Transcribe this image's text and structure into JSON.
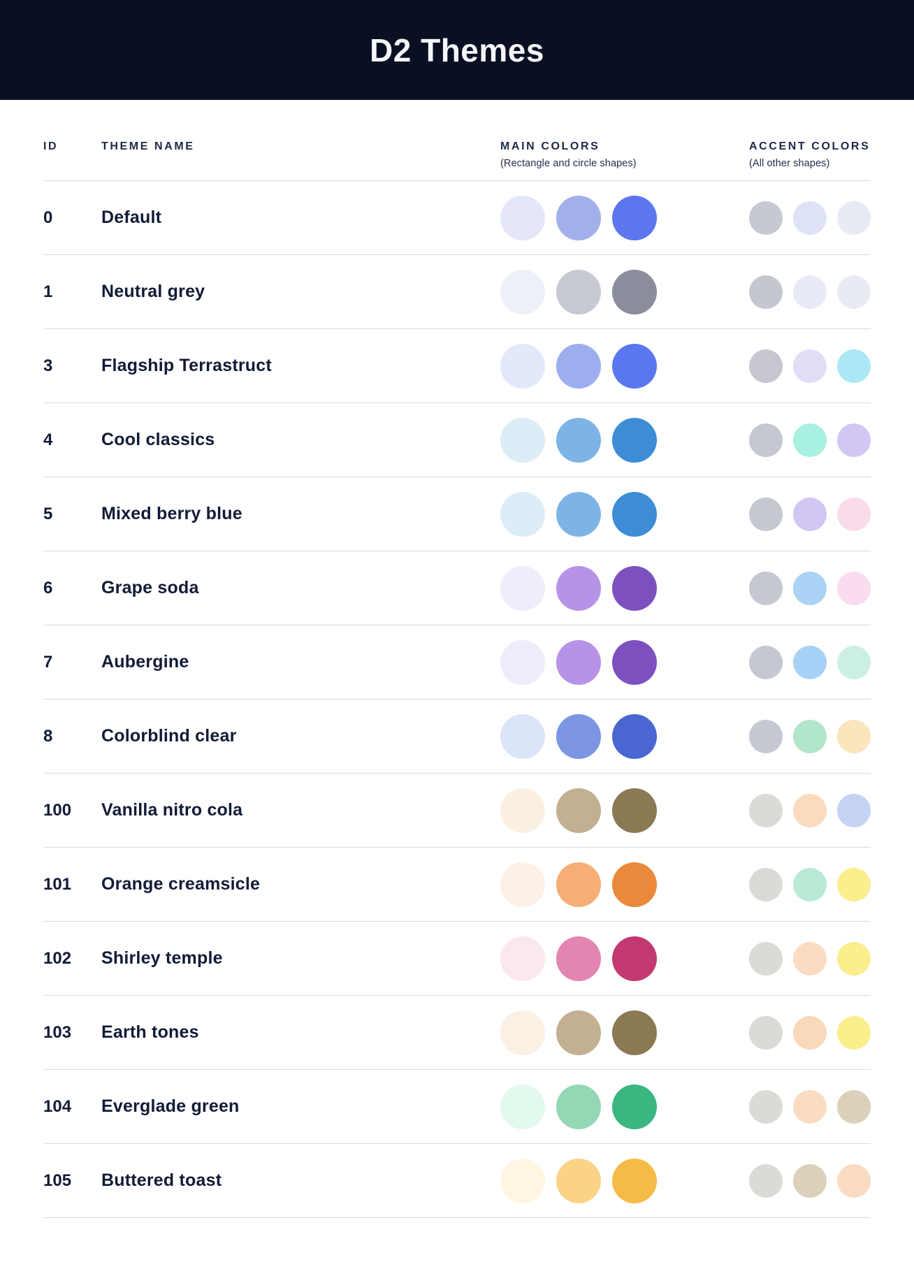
{
  "title": "D2 Themes",
  "colors": {
    "banner_bg": "#0A1023",
    "banner_text": "#F4F6F9",
    "row_text": "#121B36",
    "divider": "#D8DBE7"
  },
  "table": {
    "headers": {
      "id": "ID",
      "name": "THEME NAME",
      "main": "MAIN COLORS",
      "main_sub": "(Rectangle and circle shapes)",
      "accent": "ACCENT COLORS",
      "accent_sub": "(All other shapes)"
    },
    "rows": [
      {
        "id": "0",
        "name": "Default",
        "main": [
          "#E4E7F9",
          "#A1AFEA",
          "#5B76EE"
        ],
        "accent": [
          "#C6C8D2",
          "#DEE2F6",
          "#E8EBF4"
        ]
      },
      {
        "id": "1",
        "name": "Neutral grey",
        "main": [
          "#EDF0F6",
          "#C7C9D3",
          "#898D9C"
        ],
        "accent": [
          "#C5C7D0",
          "#E8EAF5",
          "#E9EBF3"
        ]
      },
      {
        "id": "3",
        "name": "Flagship Terrastruct",
        "main": [
          "#E4E8FB",
          "#9CAEEE",
          "#5A77F0"
        ],
        "accent": [
          "#C6C7D1",
          "#E3DCF7",
          "#ABE7F4"
        ]
      },
      {
        "id": "4",
        "name": "Cool classics",
        "main": [
          "#DCEDF8",
          "#7EB3E6",
          "#3D8CD6"
        ],
        "accent": [
          "#C6C8D1",
          "#A8F0DF",
          "#D2C7F4"
        ]
      },
      {
        "id": "5",
        "name": "Mixed berry blue",
        "main": [
          "#DCEDF8",
          "#7EB3E6",
          "#3D8CD6"
        ],
        "accent": [
          "#C6C8D1",
          "#D2C7F2",
          "#FADBEA"
        ]
      },
      {
        "id": "6",
        "name": "Grape soda",
        "main": [
          "#F1ECFA",
          "#B793E8",
          "#7C51BF"
        ],
        "accent": [
          "#C6C8D1",
          "#AAD3F5",
          "#FBDBEE"
        ]
      },
      {
        "id": "7",
        "name": "Aubergine",
        "main": [
          "#F0EBFA",
          "#B793E8",
          "#7C51BF"
        ],
        "accent": [
          "#C6C8D1",
          "#A8D1F7",
          "#CCEFE4"
        ]
      },
      {
        "id": "8",
        "name": "Colorblind clear",
        "main": [
          "#DBE5F9",
          "#7C96E3",
          "#4966D1"
        ],
        "accent": [
          "#C6C8D2",
          "#B2E6CB",
          "#FAE5BD"
        ]
      },
      {
        "id": "100",
        "name": "Vanilla nitro cola",
        "main": [
          "#FAF0E1",
          "#C3B092",
          "#8B7954"
        ],
        "accent": [
          "#DADAD7",
          "#FADBBE",
          "#C4D3F2"
        ]
      },
      {
        "id": "101",
        "name": "Orange creamsicle",
        "main": [
          "#FDF0E7",
          "#F5AE75",
          "#EA893B"
        ],
        "accent": [
          "#DADAD7",
          "#B8EAD5",
          "#FAEE8D"
        ]
      },
      {
        "id": "102",
        "name": "Shirley temple",
        "main": [
          "#FBE7EF",
          "#E286B1",
          "#C23971"
        ],
        "accent": [
          "#DADAD7",
          "#FADCC2",
          "#FAEE8D"
        ]
      },
      {
        "id": "103",
        "name": "Earth tones",
        "main": [
          "#FAF0E3",
          "#C3B092",
          "#8B7954"
        ],
        "accent": [
          "#DADAD7",
          "#FAD8BB",
          "#FAEE8D"
        ]
      },
      {
        "id": "104",
        "name": "Everglade green",
        "main": [
          "#E2F9ED",
          "#93D7B5",
          "#3AB681"
        ],
        "accent": [
          "#DADAD7",
          "#FADCC2",
          "#DBD0BA"
        ]
      },
      {
        "id": "105",
        "name": "Buttered toast",
        "main": [
          "#FEF6E0",
          "#FAD386",
          "#F6BB46"
        ],
        "accent": [
          "#DADAD7",
          "#DBD0BA",
          "#FADBC2"
        ]
      }
    ]
  }
}
